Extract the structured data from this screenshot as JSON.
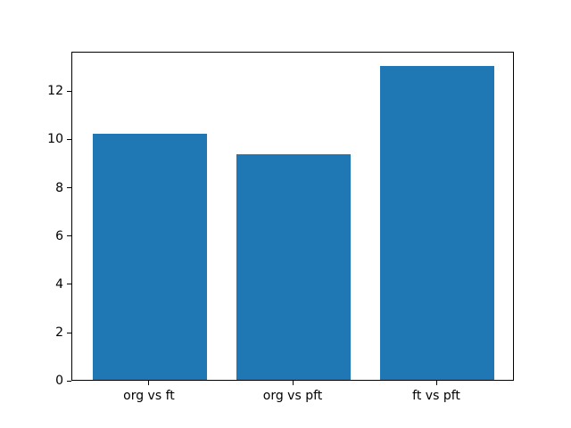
{
  "figure": {
    "background": "#ffffff",
    "axes_background": "#ffffff",
    "spine_color": "#000000",
    "tick_color": "#000000",
    "text_color": "#000000"
  },
  "chart_data": {
    "type": "bar",
    "title": "",
    "xlabel": "",
    "ylabel": "",
    "categories": [
      "org vs ft",
      "org vs pft",
      "ft vs pft"
    ],
    "values": [
      10.2,
      9.35,
      13.0
    ],
    "x_positions": [
      0,
      1,
      2
    ],
    "bar_color": "#1f77b4",
    "bar_width_fraction": 0.8,
    "xlim": [
      -0.54,
      2.54
    ],
    "ylim": [
      0,
      13.65
    ],
    "yticks": [
      0,
      2,
      4,
      6,
      8,
      10,
      12
    ],
    "grid": false,
    "legend": null
  }
}
